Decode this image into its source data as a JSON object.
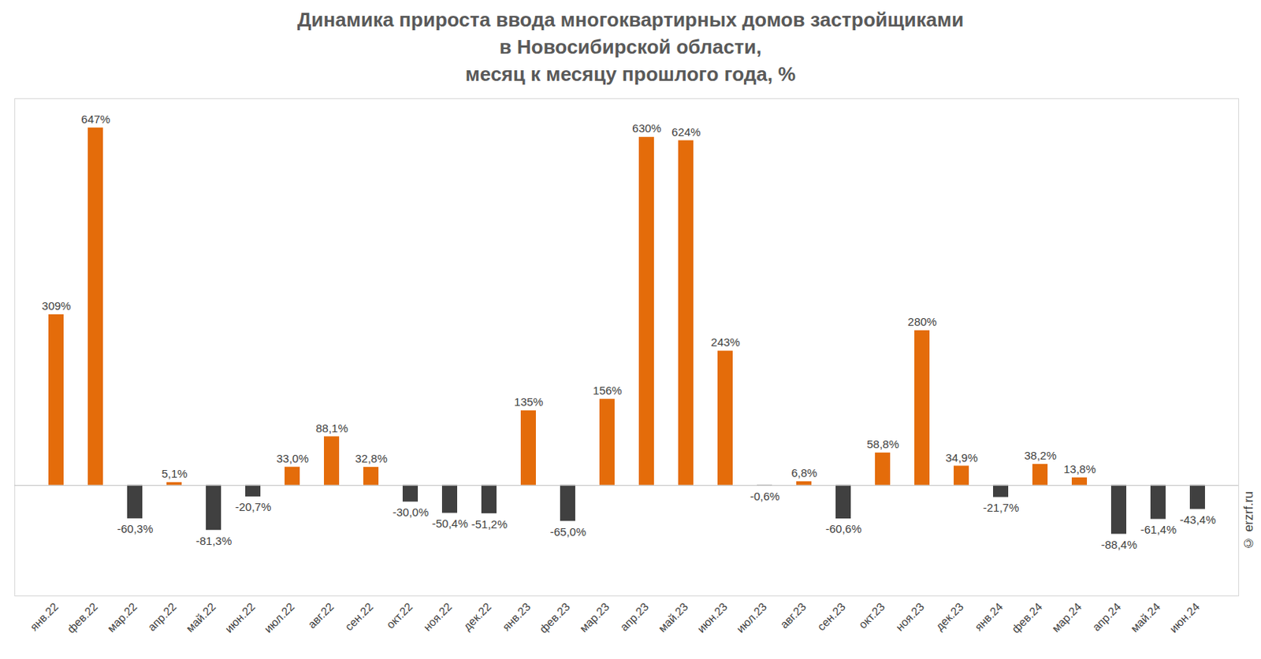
{
  "chart_data": {
    "type": "bar",
    "title": [
      "Динамика прироста ввода многоквартирных домов застройщиками",
      "в Новосибирской области,",
      "месяц к месяцу прошлого года, %"
    ],
    "credit": "© erzrf.ru",
    "categories": [
      "янв.22",
      "фев.22",
      "мар.22",
      "апр.22",
      "май.22",
      "июн.22",
      "июл.22",
      "авг.22",
      "сен.22",
      "окт.22",
      "ноя.22",
      "дек.22",
      "янв.23",
      "фев.23",
      "мар.23",
      "апр.23",
      "май.23",
      "июн.23",
      "июл.23",
      "авг.23",
      "сен.23",
      "окт.23",
      "ноя.23",
      "дек.23",
      "янв.24",
      "фев.24",
      "мар.24",
      "апр.24",
      "май.24",
      "июн.24"
    ],
    "values": [
      309,
      647,
      -60.3,
      5.1,
      -81.3,
      -20.7,
      33.0,
      88.1,
      32.8,
      -30.0,
      -50.4,
      -51.2,
      135,
      -65.0,
      156,
      630,
      624,
      243,
      -0.6,
      6.8,
      -60.6,
      58.8,
      280,
      34.9,
      -21.7,
      38.2,
      13.8,
      -88.4,
      -61.4,
      -43.4
    ],
    "value_labels": [
      "309%",
      "647%",
      "-60,3%",
      "5,1%",
      "-81,3%",
      "-20,7%",
      "33,0%",
      "88,1%",
      "32,8%",
      "-30,0%",
      "-50,4%",
      "-51,2%",
      "135%",
      "-65,0%",
      "156%",
      "630%",
      "624%",
      "243%",
      "-0,6%",
      "6,8%",
      "-60,6%",
      "58,8%",
      "280%",
      "34,9%",
      "-21,7%",
      "38,2%",
      "13,8%",
      "-88,4%",
      "-61,4%",
      "-43,4%"
    ],
    "colors": [
      "#e46c0a",
      "#e46c0a",
      "#404040",
      "#e46c0a",
      "#404040",
      "#404040",
      "#e46c0a",
      "#e46c0a",
      "#e46c0a",
      "#404040",
      "#404040",
      "#404040",
      "#e46c0a",
      "#404040",
      "#e46c0a",
      "#e46c0a",
      "#e46c0a",
      "#e46c0a",
      "#404040",
      "#e46c0a",
      "#404040",
      "#e46c0a",
      "#e46c0a",
      "#e46c0a",
      "#404040",
      "#e46c0a",
      "#e46c0a",
      "#404040",
      "#404040",
      "#404040"
    ],
    "ylim": [
      -200,
      700
    ],
    "data_labels": true,
    "tick_labels": "x",
    "grid": false
  }
}
